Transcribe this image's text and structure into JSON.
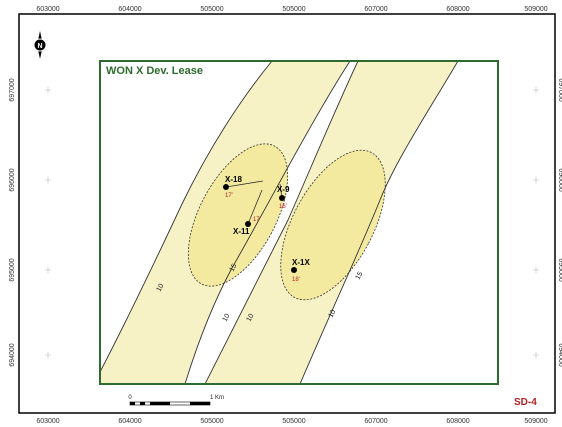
{
  "map": {
    "lease_title": "WON X Dev. Lease",
    "map_id": "SD-4",
    "north_letter": "N",
    "colors": {
      "frame": "#000000",
      "lease_boundary": "#2e6b2e",
      "sand_fill": "#f7f1c6",
      "high_fill": "#f3ea9f",
      "contour": "#333333",
      "well_value": "#b22222",
      "map_id": "#b22222"
    },
    "x_ticks_top": [
      "603000",
      "604000",
      "505000",
      "505000",
      "607000",
      "608000",
      "509000"
    ],
    "x_ticks_bottom": [
      "603000",
      "604000",
      "505000",
      "505000",
      "607000",
      "608000",
      "509000"
    ],
    "y_ticks_left": [
      "697000",
      "696000",
      "695000",
      "694000"
    ],
    "y_ticks_right": [
      "697000",
      "696000",
      "695000",
      "694000"
    ],
    "wells": [
      {
        "name": "X-18",
        "value": "17'"
      },
      {
        "name": "X-9",
        "value": "16'"
      },
      {
        "name": "X-11",
        "value": "17'"
      },
      {
        "name": "X-1X",
        "value": "18'"
      }
    ],
    "contour_labels": [
      "10",
      "10",
      "10",
      "10",
      "15",
      "15"
    ],
    "scale": {
      "start": "0",
      "end": "1 Km"
    }
  }
}
